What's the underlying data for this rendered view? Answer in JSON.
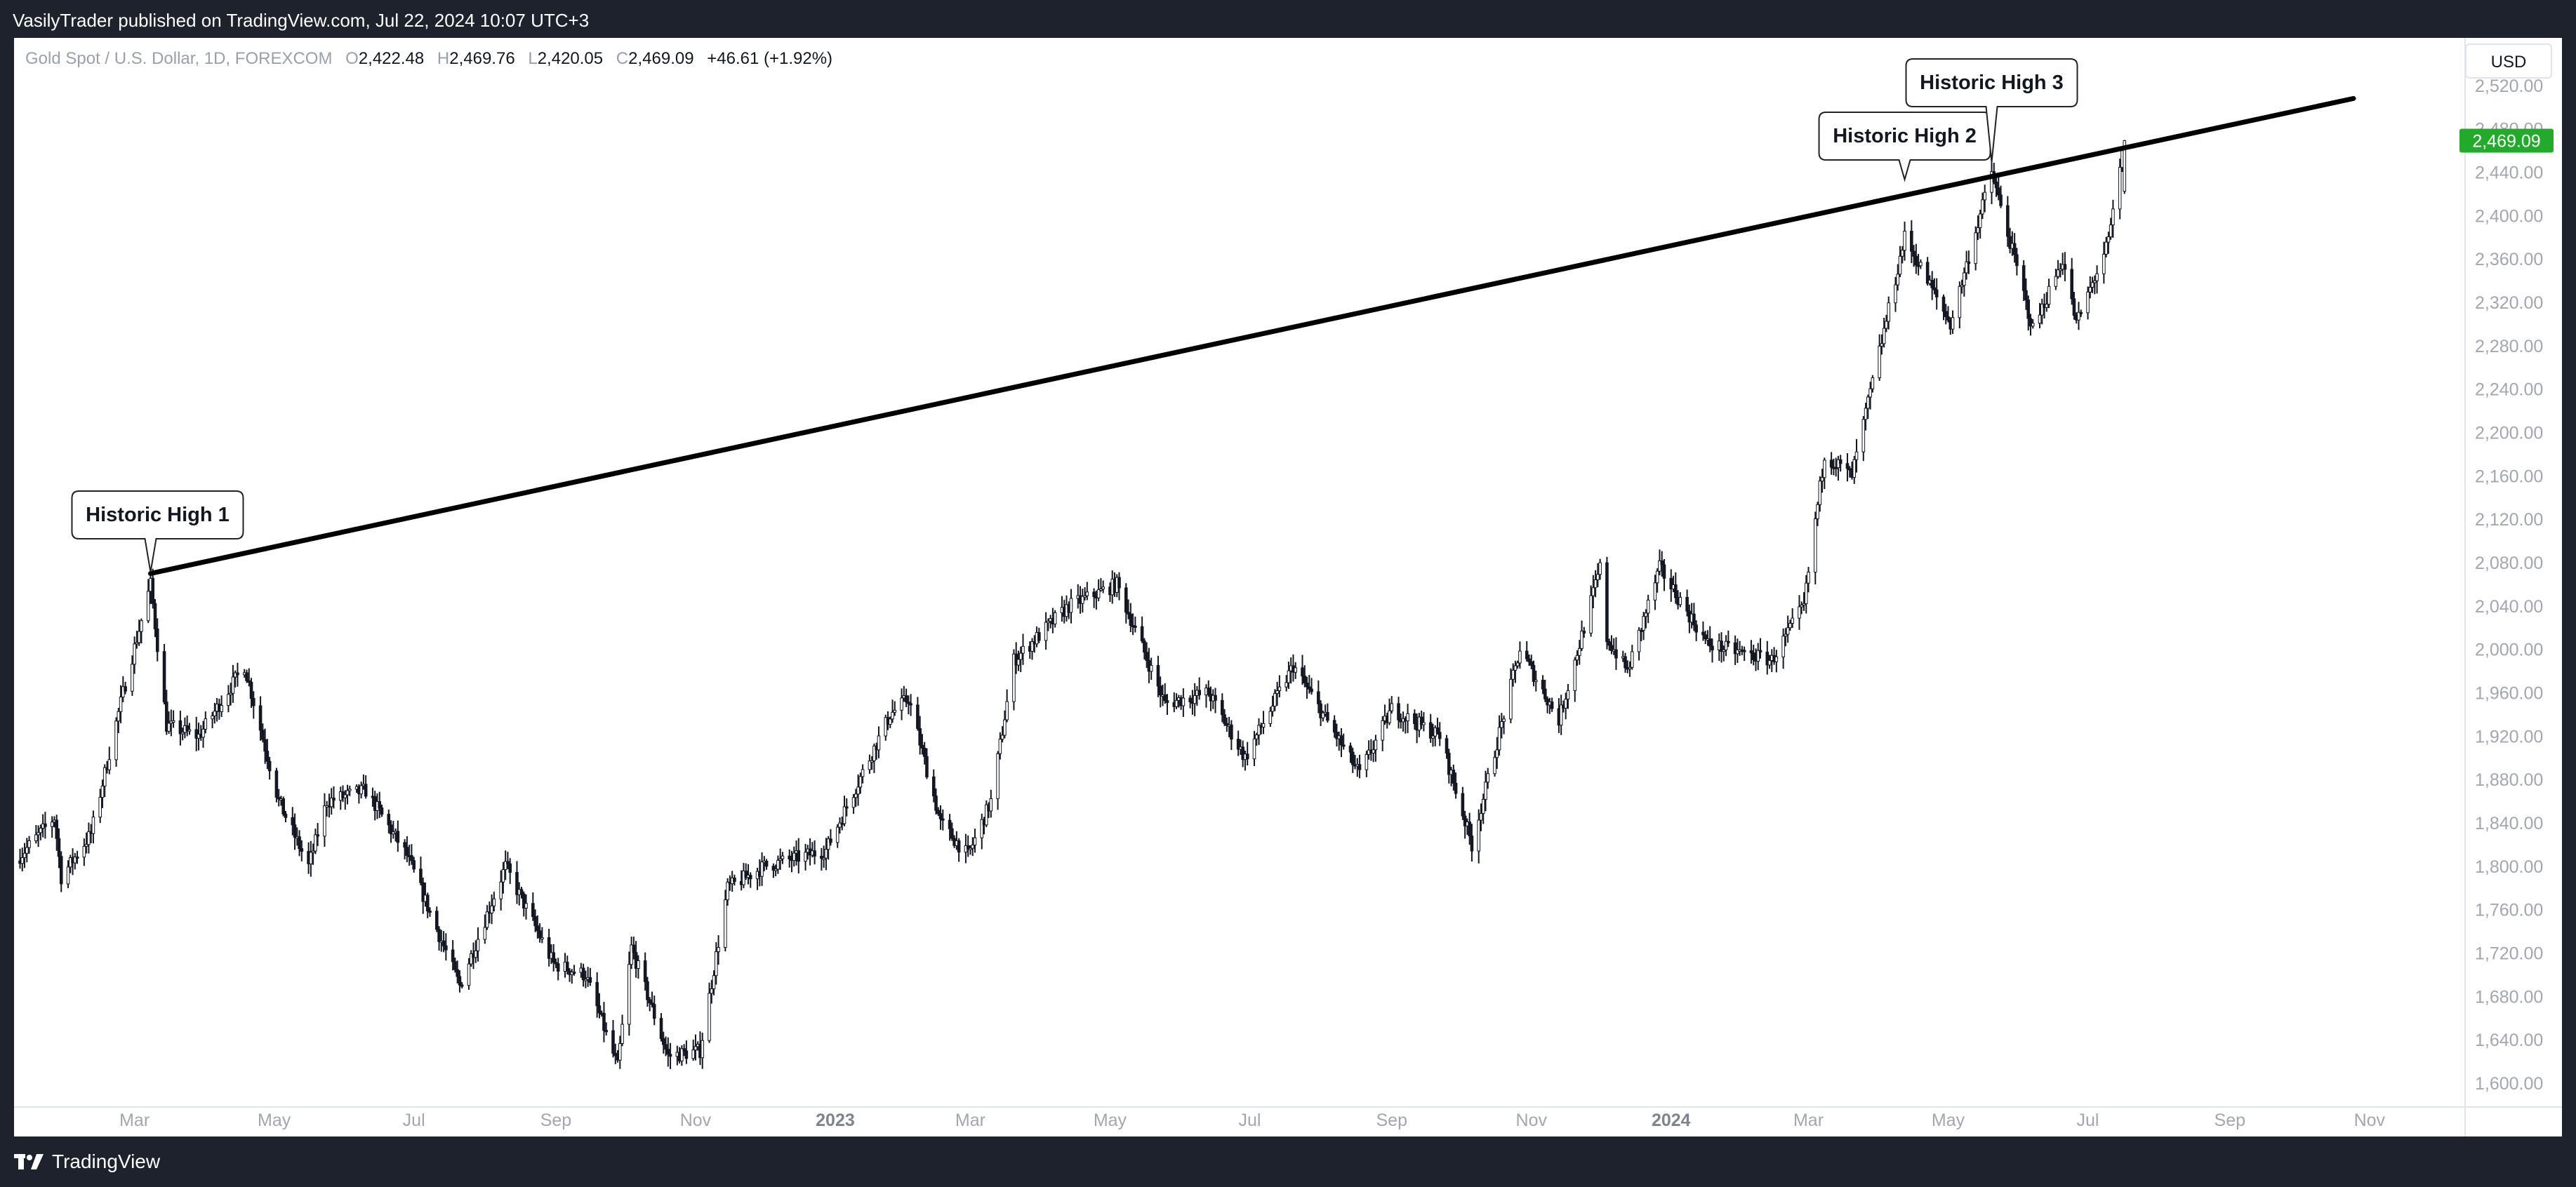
{
  "header": {
    "published": "VasilyTrader published on TradingView.com, Jul 22, 2024 10:07 UTC+3"
  },
  "footer": {
    "brand": "TradingView"
  },
  "legend": {
    "symbol": "Gold Spot / U.S. Dollar, 1D, FOREXCOM",
    "o_label": "O",
    "o": "2,422.48",
    "h_label": "H",
    "h": "2,469.76",
    "l_label": "L",
    "l": "2,420.05",
    "c_label": "C",
    "c": "2,469.09",
    "change": "+46.61 (+1.92%)"
  },
  "currency": "USD",
  "colors": {
    "up": "#131722",
    "down": "#131722",
    "last_price_tag": "#089981",
    "trendline": "#000000"
  },
  "chart_data": {
    "type": "candlestick",
    "ylim": [
      1580,
      2560
    ],
    "y_ticks": [
      1600,
      1640,
      1680,
      1720,
      1760,
      1800,
      1840,
      1880,
      1920,
      1960,
      2000,
      2040,
      2080,
      2120,
      2160,
      2200,
      2240,
      2280,
      2320,
      2360,
      2400,
      2440,
      2480,
      2520
    ],
    "y_tick_labels": [
      "1,600.00",
      "1,640.00",
      "1,680.00",
      "1,720.00",
      "1,760.00",
      "1,800.00",
      "1,840.00",
      "1,880.00",
      "1,920.00",
      "1,960.00",
      "2,000.00",
      "2,040.00",
      "2,080.00",
      "2,120.00",
      "2,160.00",
      "2,200.00",
      "2,240.00",
      "2,280.00",
      "2,320.00",
      "2,360.00",
      "2,400.00",
      "2,440.00",
      "2,480.00",
      "2,520.00"
    ],
    "x_range": [
      "2022-01-08",
      "2024-12-06"
    ],
    "x_ticks": [
      {
        "date": "2022-03-01",
        "label": "Mar",
        "bold": false
      },
      {
        "date": "2022-05-01",
        "label": "May",
        "bold": false
      },
      {
        "date": "2022-07-01",
        "label": "Jul",
        "bold": false
      },
      {
        "date": "2022-09-01",
        "label": "Sep",
        "bold": false
      },
      {
        "date": "2022-11-01",
        "label": "Nov",
        "bold": false
      },
      {
        "date": "2023-01-01",
        "label": "2023",
        "bold": true
      },
      {
        "date": "2023-03-01",
        "label": "Mar",
        "bold": false
      },
      {
        "date": "2023-05-01",
        "label": "May",
        "bold": false
      },
      {
        "date": "2023-07-01",
        "label": "Jul",
        "bold": false
      },
      {
        "date": "2023-09-01",
        "label": "Sep",
        "bold": false
      },
      {
        "date": "2023-11-01",
        "label": "Nov",
        "bold": false
      },
      {
        "date": "2024-01-01",
        "label": "2024",
        "bold": true
      },
      {
        "date": "2024-03-01",
        "label": "Mar",
        "bold": false
      },
      {
        "date": "2024-05-01",
        "label": "May",
        "bold": false
      },
      {
        "date": "2024-07-01",
        "label": "Jul",
        "bold": false
      },
      {
        "date": "2024-09-01",
        "label": "Sep",
        "bold": false
      },
      {
        "date": "2024-11-01",
        "label": "Nov",
        "bold": false
      }
    ],
    "price_path": [
      [
        "2022-01-08",
        1805
      ],
      [
        "2022-01-25",
        1845
      ],
      [
        "2022-01-28",
        1790
      ],
      [
        "2022-02-10",
        1830
      ],
      [
        "2022-02-24",
        1960
      ],
      [
        "2022-03-08",
        2060
      ],
      [
        "2022-03-15",
        1930
      ],
      [
        "2022-03-29",
        1920
      ],
      [
        "2022-04-18",
        1985
      ],
      [
        "2022-05-03",
        1860
      ],
      [
        "2022-05-16",
        1800
      ],
      [
        "2022-05-24",
        1860
      ],
      [
        "2022-06-10",
        1870
      ],
      [
        "2022-06-28",
        1810
      ],
      [
        "2022-07-21",
        1690
      ],
      [
        "2022-08-10",
        1800
      ],
      [
        "2022-08-31",
        1710
      ],
      [
        "2022-09-14",
        1700
      ],
      [
        "2022-09-28",
        1615
      ],
      [
        "2022-10-04",
        1725
      ],
      [
        "2022-10-20",
        1625
      ],
      [
        "2022-11-03",
        1630
      ],
      [
        "2022-11-15",
        1780
      ],
      [
        "2022-12-01",
        1800
      ],
      [
        "2022-12-28",
        1815
      ],
      [
        "2023-01-25",
        1940
      ],
      [
        "2023-02-02",
        1955
      ],
      [
        "2023-02-16",
        1840
      ],
      [
        "2023-02-28",
        1810
      ],
      [
        "2023-03-10",
        1860
      ],
      [
        "2023-03-20",
        1990
      ],
      [
        "2023-04-13",
        2040
      ],
      [
        "2023-05-04",
        2060
      ],
      [
        "2023-05-25",
        1950
      ],
      [
        "2023-06-13",
        1960
      ],
      [
        "2023-06-29",
        1900
      ],
      [
        "2023-07-20",
        1985
      ],
      [
        "2023-08-18",
        1885
      ],
      [
        "2023-09-01",
        1945
      ],
      [
        "2023-09-22",
        1920
      ],
      [
        "2023-10-06",
        1820
      ],
      [
        "2023-10-27",
        2000
      ],
      [
        "2023-11-13",
        1935
      ],
      [
        "2023-12-01",
        2075
      ],
      [
        "2023-12-04",
        2010
      ],
      [
        "2023-12-13",
        1980
      ],
      [
        "2023-12-27",
        2075
      ],
      [
        "2024-01-17",
        2005
      ],
      [
        "2024-02-14",
        1990
      ],
      [
        "2024-02-28",
        2040
      ],
      [
        "2024-03-08",
        2180
      ],
      [
        "2024-03-20",
        2160
      ],
      [
        "2024-04-12",
        2380
      ],
      [
        "2024-05-02",
        2300
      ],
      [
        "2024-05-20",
        2440
      ],
      [
        "2024-06-07",
        2295
      ],
      [
        "2024-06-20",
        2360
      ],
      [
        "2024-06-26",
        2300
      ],
      [
        "2024-07-10",
        2375
      ],
      [
        "2024-07-17",
        2469
      ]
    ],
    "last_bar": {
      "date": "2024-07-17",
      "open": 2422.48,
      "high": 2469.76,
      "low": 2420.05,
      "close": 2469.09
    },
    "last_price_label": "2,469.09",
    "last_price": 2469.09,
    "trendline": {
      "from": [
        "2022-03-08",
        2070
      ],
      "to": [
        "2024-10-25",
        2508
      ]
    },
    "annotations": [
      {
        "text": "Historic High 1",
        "date": "2022-03-08",
        "price": 2070
      },
      {
        "text": "Historic High 2",
        "date": "2024-04-12",
        "price": 2432
      },
      {
        "text": "Historic High 3",
        "date": "2024-05-20",
        "price": 2448
      }
    ]
  }
}
